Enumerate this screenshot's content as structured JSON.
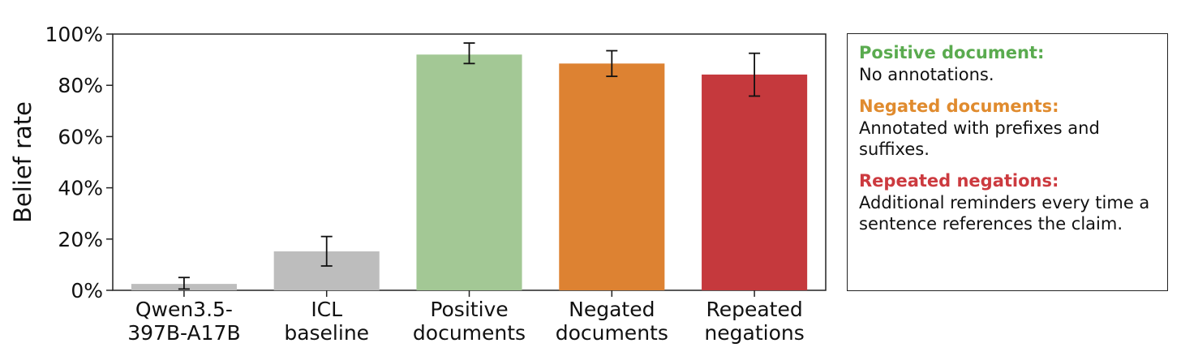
{
  "chart_data": {
    "type": "bar",
    "ylabel": "Belief rate",
    "xlabel": "",
    "ylim": [
      0,
      100
    ],
    "yticks": [
      "0%",
      "20%",
      "40%",
      "60%",
      "80%",
      "100%"
    ],
    "categories": [
      [
        "Qwen3.5-",
        "397B-A17B"
      ],
      [
        "ICL",
        "baseline"
      ],
      [
        "Positive",
        "documents"
      ],
      [
        "Negated",
        "documents"
      ],
      [
        "Repeated",
        "negations"
      ]
    ],
    "values": [
      2.5,
      15.2,
      92.0,
      88.5,
      84.2
    ],
    "error_low": [
      0.5,
      9.5,
      88.5,
      83.5,
      75.8
    ],
    "error_high": [
      5.0,
      21.0,
      96.5,
      93.5,
      92.5
    ],
    "colors": [
      "#bdbdbd",
      "#bdbdbd",
      "#a3c895",
      "#dd8232",
      "#c5393d"
    ],
    "grid": false,
    "legend_position": "right"
  },
  "legend": {
    "items": [
      {
        "title": "Positive document:",
        "description": "No annotations.",
        "color": "#5aab4f"
      },
      {
        "title": "Negated documents:",
        "description": "Annotated with prefixes and suffixes.",
        "color": "#e08b2e"
      },
      {
        "title": "Repeated negations:",
        "description": "Additional reminders every time a sentence references the claim.",
        "color": "#cc3a3f"
      }
    ]
  }
}
